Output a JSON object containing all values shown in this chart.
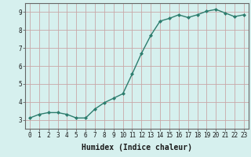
{
  "x": [
    0,
    1,
    2,
    3,
    4,
    5,
    6,
    7,
    8,
    9,
    10,
    11,
    12,
    13,
    14,
    15,
    16,
    17,
    18,
    19,
    20,
    21,
    22,
    23
  ],
  "y": [
    3.1,
    3.3,
    3.4,
    3.4,
    3.3,
    3.1,
    3.1,
    3.6,
    3.95,
    4.2,
    4.45,
    5.55,
    6.7,
    7.7,
    8.5,
    8.65,
    8.85,
    8.7,
    8.85,
    9.05,
    9.15,
    8.95,
    8.75,
    8.85
  ],
  "line_color": "#2d7d6e",
  "marker": "D",
  "marker_size": 2.0,
  "bg_color": "#d6f0ee",
  "grid_color": "#c8a8a8",
  "xlabel": "Humidex (Indice chaleur)",
  "xlim": [
    -0.5,
    23.5
  ],
  "ylim": [
    2.5,
    9.5
  ],
  "yticks": [
    3,
    4,
    5,
    6,
    7,
    8,
    9
  ],
  "xticks": [
    0,
    1,
    2,
    3,
    4,
    5,
    6,
    7,
    8,
    9,
    10,
    11,
    12,
    13,
    14,
    15,
    16,
    17,
    18,
    19,
    20,
    21,
    22,
    23
  ],
  "tick_fontsize": 5.5,
  "xlabel_fontsize": 7.0,
  "line_width": 1.0,
  "spine_color": "#666666"
}
